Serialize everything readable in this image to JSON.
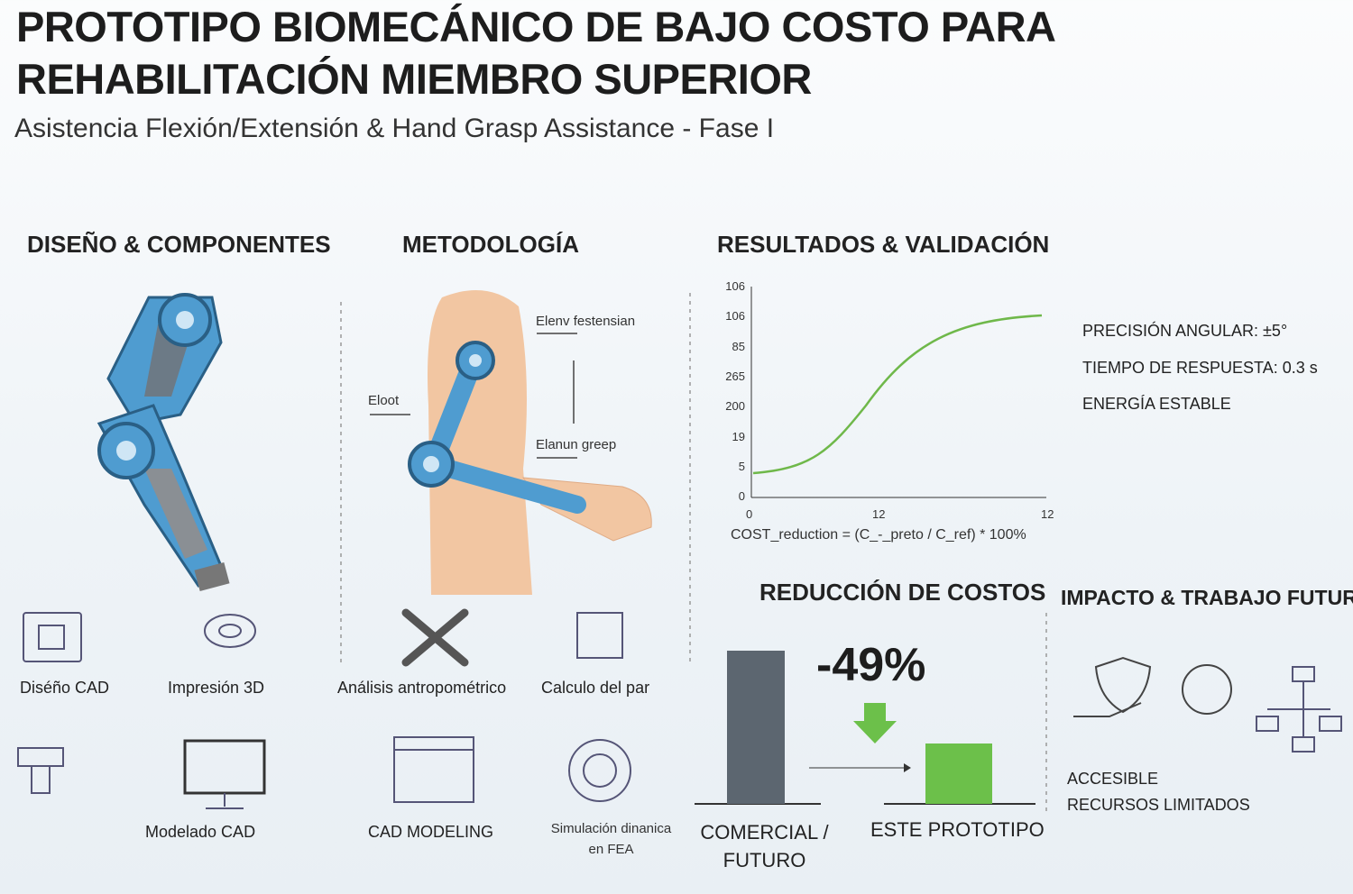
{
  "header": {
    "title_line1": "PROTOTIPO BIOMECÁNICO DE BAJO COSTO PARA",
    "title_line2": "REHABILITACIÓN MIEMBRO SUPERIOR",
    "subtitle": "Asistencia Flexión/Extensión & Hand Grasp Assistance - Fase I"
  },
  "design": {
    "heading": "DISEÑO & COMPONENTES",
    "items": [
      "Diséño CAD",
      "Impresión 3D",
      "Modelado CAD"
    ]
  },
  "methodology": {
    "heading": "METODOLOGÍA",
    "diagram_labels": [
      "Elenv festensian",
      "Eloot",
      "Elanun greep"
    ],
    "items": [
      "Análisis antropométrico",
      "Calculo del par",
      "CAD MODELING",
      "Simulación dinanica en FEA"
    ]
  },
  "results": {
    "heading": "RESULTADOS & VALIDACIÓN",
    "y_labels": [
      "106",
      "106",
      "85",
      "265",
      "200",
      "19",
      "5",
      "0"
    ],
    "x_labels": [
      "0",
      "12",
      "12"
    ],
    "formula": "COST_reduction = (C_-_preto / C_ref) * 100%",
    "metrics": [
      "PRECISIÓN ANGULAR: ±5°",
      "TIEMPO DE RESPUESTA: 0.3 s",
      "ENERGÍA ESTABLE"
    ]
  },
  "costs": {
    "heading": "REDUCCIÓN DE COSTOS",
    "change": "-49%",
    "bar_labels": [
      "COMERCIAL / FUTURO",
      "ESTE PROTOTIPO"
    ]
  },
  "impact": {
    "heading": "IMPACTO & TRABAJO FUTURO",
    "lines": [
      "ACCESIBLE",
      "RECURSOS LIMITADOS"
    ]
  }
}
